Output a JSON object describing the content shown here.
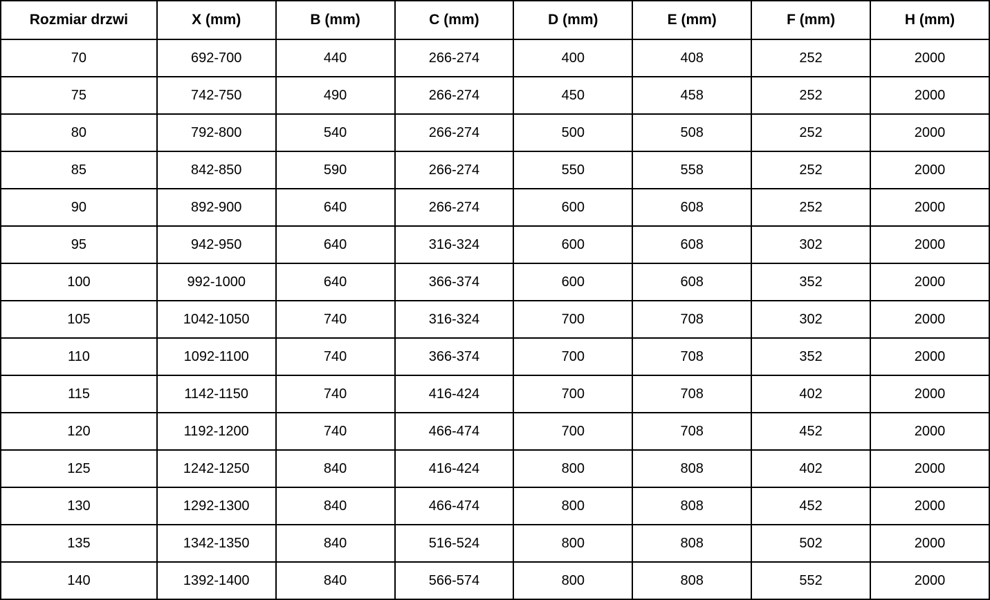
{
  "table": {
    "columns": [
      "Rozmiar drzwi",
      "X (mm)",
      "B (mm)",
      "C (mm)",
      "D (mm)",
      "E (mm)",
      "F (mm)",
      "H (mm)"
    ],
    "rows": [
      [
        "70",
        "692-700",
        "440",
        "266-274",
        "400",
        "408",
        "252",
        "2000"
      ],
      [
        "75",
        "742-750",
        "490",
        "266-274",
        "450",
        "458",
        "252",
        "2000"
      ],
      [
        "80",
        "792-800",
        "540",
        "266-274",
        "500",
        "508",
        "252",
        "2000"
      ],
      [
        "85",
        "842-850",
        "590",
        "266-274",
        "550",
        "558",
        "252",
        "2000"
      ],
      [
        "90",
        "892-900",
        "640",
        "266-274",
        "600",
        "608",
        "252",
        "2000"
      ],
      [
        "95",
        "942-950",
        "640",
        "316-324",
        "600",
        "608",
        "302",
        "2000"
      ],
      [
        "100",
        "992-1000",
        "640",
        "366-374",
        "600",
        "608",
        "352",
        "2000"
      ],
      [
        "105",
        "1042-1050",
        "740",
        "316-324",
        "700",
        "708",
        "302",
        "2000"
      ],
      [
        "110",
        "1092-1100",
        "740",
        "366-374",
        "700",
        "708",
        "352",
        "2000"
      ],
      [
        "115",
        "1142-1150",
        "740",
        "416-424",
        "700",
        "708",
        "402",
        "2000"
      ],
      [
        "120",
        "1192-1200",
        "740",
        "466-474",
        "700",
        "708",
        "452",
        "2000"
      ],
      [
        "125",
        "1242-1250",
        "840",
        "416-424",
        "800",
        "808",
        "402",
        "2000"
      ],
      [
        "130",
        "1292-1300",
        "840",
        "466-474",
        "800",
        "808",
        "452",
        "2000"
      ],
      [
        "135",
        "1342-1350",
        "840",
        "516-524",
        "800",
        "808",
        "502",
        "2000"
      ],
      [
        "140",
        "1392-1400",
        "840",
        "566-574",
        "800",
        "808",
        "552",
        "2000"
      ]
    ]
  },
  "colors": {
    "border": "#000000",
    "background": "#ffffff",
    "text": "#000000"
  }
}
